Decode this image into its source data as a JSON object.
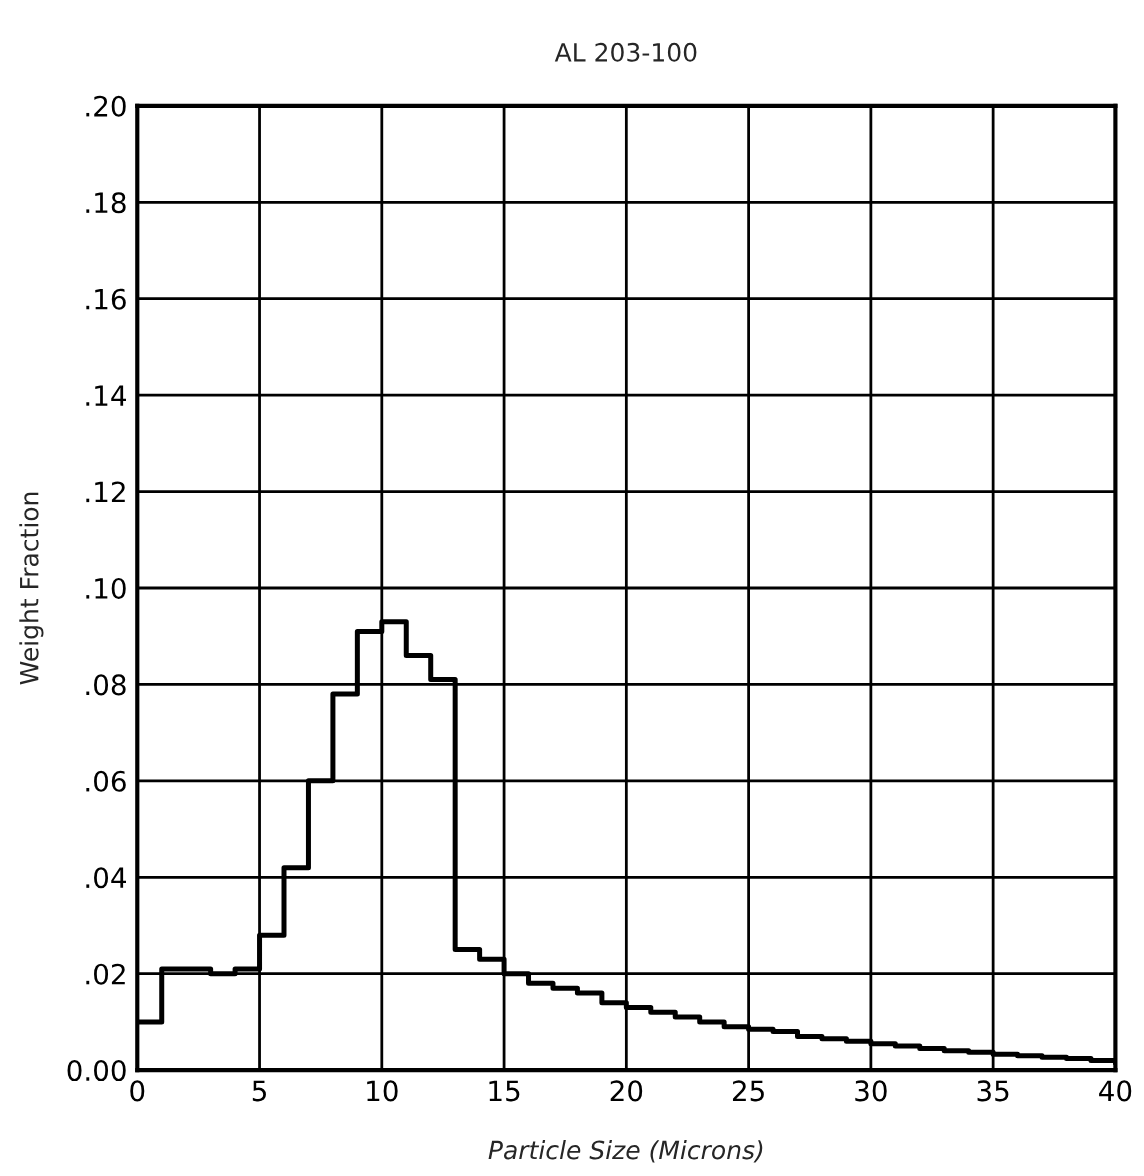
{
  "chart_data": {
    "type": "step",
    "title": "AL 203-100",
    "xlabel": "Particle Size (Microns)",
    "ylabel": "Weight Fraction",
    "x": [
      0,
      1,
      2,
      3,
      4,
      5,
      6,
      7,
      8,
      9,
      10,
      11,
      12,
      13,
      14,
      15,
      16,
      17,
      18,
      19,
      20,
      21,
      22,
      23,
      24,
      25,
      26,
      27,
      28,
      29,
      30,
      31,
      32,
      33,
      34,
      35,
      36,
      37,
      38,
      39,
      40
    ],
    "values": [
      0.01,
      0.021,
      0.021,
      0.02,
      0.021,
      0.028,
      0.042,
      0.06,
      0.078,
      0.091,
      0.093,
      0.086,
      0.081,
      0.025,
      0.023,
      0.02,
      0.018,
      0.017,
      0.016,
      0.014,
      0.013,
      0.012,
      0.011,
      0.01,
      0.009,
      0.0085,
      0.008,
      0.007,
      0.0065,
      0.006,
      0.0055,
      0.005,
      0.0045,
      0.004,
      0.0037,
      0.0033,
      0.003,
      0.0027,
      0.0024,
      0.002,
      0.0015
    ],
    "color": "#000000",
    "xlim": [
      0,
      40
    ],
    "xticks": [
      0,
      5,
      10,
      15,
      20,
      25,
      30,
      35,
      40
    ],
    "ylim": [
      0,
      0.2
    ],
    "yticks": [
      {
        "value": 0,
        "label": "0.00"
      },
      {
        "value": 0.02,
        "label": ".02"
      },
      {
        "value": 0.04,
        "label": ".04"
      },
      {
        "value": 0.06,
        "label": ".06"
      },
      {
        "value": 0.08,
        "label": ".08"
      },
      {
        "value": 0.1,
        "label": ".10"
      },
      {
        "value": 0.12,
        "label": ".12"
      },
      {
        "value": 0.14,
        "label": ".14"
      },
      {
        "value": 0.16,
        "label": ".16"
      },
      {
        "value": 0.18,
        "label": ".18"
      },
      {
        "value": 0.2,
        "label": ".20"
      }
    ],
    "grid": true
  }
}
